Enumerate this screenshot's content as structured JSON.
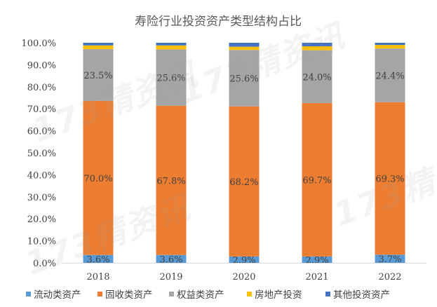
{
  "chart_data": {
    "type": "bar",
    "stacked": true,
    "title": "寿险行业投资资产类型结构占比",
    "categories": [
      "2018",
      "2019",
      "2020",
      "2021",
      "2022"
    ],
    "series": [
      {
        "name": "流动类资产",
        "color": "#5B9BD5",
        "values": [
          3.6,
          3.6,
          2.9,
          2.9,
          3.7
        ],
        "labels": [
          "3.6%",
          "3.6%",
          "2.9%",
          "2.9%",
          "3.7%"
        ]
      },
      {
        "name": "固收类资产",
        "color": "#ED7D31",
        "values": [
          70.0,
          67.8,
          68.2,
          69.7,
          69.3
        ],
        "labels": [
          "70.0%",
          "67.8%",
          "68.2%",
          "69.7%",
          "69.3%"
        ]
      },
      {
        "name": "权益类资产",
        "color": "#A5A5A5",
        "values": [
          23.5,
          25.6,
          25.6,
          24.0,
          24.4
        ],
        "labels": [
          "23.5%",
          "25.6%",
          "25.6%",
          "24.0%",
          "24.4%"
        ]
      },
      {
        "name": "房地产投资",
        "color": "#FFC000",
        "values": [
          1.7,
          1.8,
          1.5,
          1.8,
          1.6
        ]
      },
      {
        "name": "其他投资资产",
        "color": "#4472C4",
        "values": [
          1.2,
          1.2,
          1.8,
          1.6,
          1.0
        ]
      }
    ],
    "ylim": [
      0,
      100
    ],
    "yticks": [
      "0.0%",
      "10.0%",
      "20.0%",
      "30.0%",
      "40.0%",
      "50.0%",
      "60.0%",
      "70.0%",
      "80.0%",
      "90.0%",
      "100.0%"
    ],
    "grid": false,
    "legend": "bottom"
  },
  "watermark": "173精资讯"
}
